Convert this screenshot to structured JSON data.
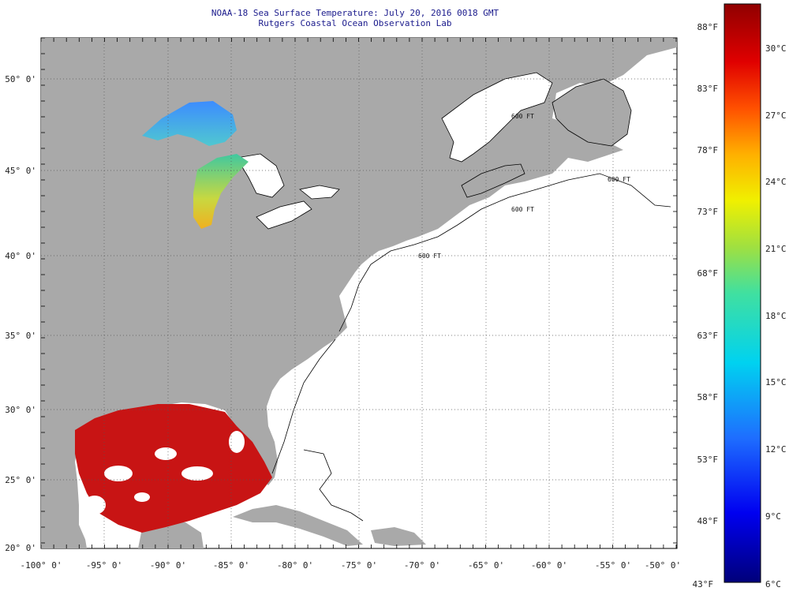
{
  "title": {
    "line1": "NOAA-18 Sea Surface Temperature:  July 20, 2016 0018 GMT",
    "line2": "Rutgers Coastal Ocean Observation Lab"
  },
  "axes": {
    "lon_ticks": [
      "-100° 0'",
      "-95° 0'",
      "-90° 0'",
      "-85° 0'",
      "-80° 0'",
      "-75° 0'",
      "-70° 0'",
      "-65° 0'",
      "-60° 0'",
      "-55° 0'",
      "-50° 0'"
    ],
    "lat_ticks": [
      "50° 0'",
      "45° 0'",
      "40° 0'",
      "35° 0'",
      "30° 0'",
      "25° 0'",
      "20° 0'"
    ]
  },
  "colorbar": {
    "fahrenheit_labels": [
      "88°F",
      "83°F",
      "78°F",
      "73°F",
      "68°F",
      "63°F",
      "58°F",
      "53°F",
      "48°F",
      "43°F"
    ],
    "celsius_labels": [
      "30°C",
      "27°C",
      "24°C",
      "21°C",
      "18°C",
      "15°C",
      "12°C",
      "9°C",
      "6°C"
    ]
  },
  "map_labels": {
    "isobath": "600 FT"
  },
  "colors": {
    "land": "#a9a9a9",
    "ocean_nodata": "#ffffff",
    "warm": "#c81414",
    "cool": "#1e5adc",
    "mid": "#e8c020"
  }
}
